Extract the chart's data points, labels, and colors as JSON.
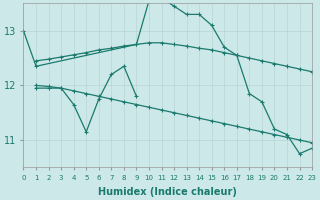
{
  "xlabel": "Humidex (Indice chaleur)",
  "xlim": [
    0,
    23
  ],
  "ylim": [
    10.5,
    13.5
  ],
  "yticks": [
    11,
    12,
    13
  ],
  "xticks": [
    0,
    1,
    2,
    3,
    4,
    5,
    6,
    7,
    8,
    9,
    10,
    11,
    12,
    13,
    14,
    15,
    16,
    17,
    18,
    19,
    20,
    21,
    22,
    23
  ],
  "bg_color": "#cde8e8",
  "grid_color": "#b8d4d4",
  "line_color": "#1a7a6e",
  "lines": [
    {
      "x": [
        0,
        1,
        9,
        10,
        11,
        12,
        13,
        14,
        15,
        16,
        17,
        18,
        19,
        20,
        21,
        22,
        23
      ],
      "y": [
        13.0,
        12.35,
        12.75,
        13.55,
        13.6,
        13.45,
        13.3,
        13.3,
        13.1,
        12.7,
        12.55,
        11.85,
        11.7,
        11.2,
        11.1,
        10.75,
        10.85
      ]
    },
    {
      "x": [
        1,
        2,
        3,
        4,
        5,
        6,
        7,
        8,
        9
      ],
      "y": [
        11.95,
        11.95,
        11.95,
        11.65,
        11.15,
        11.75,
        12.2,
        12.35,
        11.8
      ]
    },
    {
      "x": [
        1,
        2,
        3,
        4,
        5,
        6,
        7,
        8,
        9,
        10,
        11,
        12,
        13,
        14,
        15,
        16,
        17,
        18,
        19,
        20,
        21,
        22,
        23
      ],
      "y": [
        12.45,
        12.48,
        12.52,
        12.56,
        12.6,
        12.65,
        12.68,
        12.72,
        12.75,
        12.78,
        12.78,
        12.75,
        12.72,
        12.68,
        12.65,
        12.6,
        12.55,
        12.5,
        12.45,
        12.4,
        12.35,
        12.3,
        12.25
      ]
    },
    {
      "x": [
        1,
        2,
        3,
        4,
        5,
        6,
        7,
        8,
        9,
        10,
        11,
        12,
        13,
        14,
        15,
        16,
        17,
        18,
        19,
        20,
        21,
        22,
        23
      ],
      "y": [
        12.0,
        11.98,
        11.95,
        11.9,
        11.85,
        11.8,
        11.75,
        11.7,
        11.65,
        11.6,
        11.55,
        11.5,
        11.45,
        11.4,
        11.35,
        11.3,
        11.25,
        11.2,
        11.15,
        11.1,
        11.05,
        11.0,
        10.95
      ]
    }
  ]
}
